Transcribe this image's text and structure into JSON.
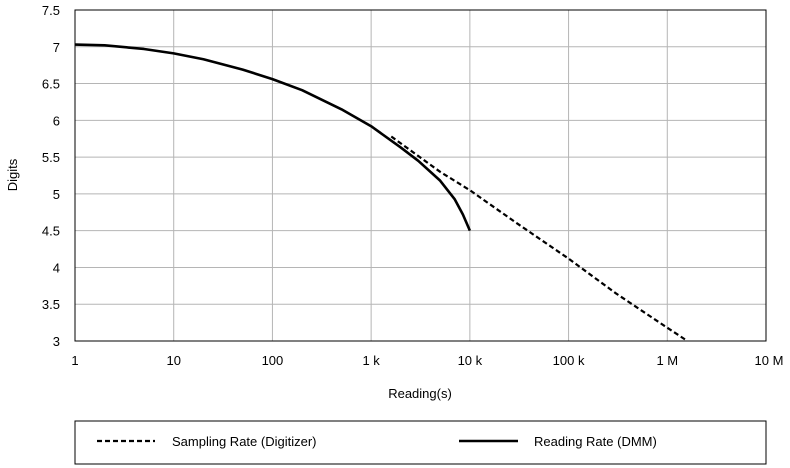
{
  "chart_data": {
    "type": "line",
    "title": "",
    "xlabel": "Reading(s)",
    "ylabel": "Digits",
    "x_scale": "log",
    "xlim": [
      1,
      10000000
    ],
    "ylim": [
      3,
      7.5
    ],
    "x_tick_values": [
      1,
      10,
      100,
      1000,
      10000,
      100000,
      1000000,
      10000000
    ],
    "x_tick_labels": [
      "1",
      "10",
      "100",
      "1 k",
      "10 k",
      "100 k",
      "1 M",
      "10 M"
    ],
    "y_tick_values": [
      3,
      3.5,
      4,
      4.5,
      5,
      5.5,
      6,
      6.5,
      7,
      7.5
    ],
    "y_tick_labels": [
      "3",
      "3.5",
      "4",
      "4.5",
      "5",
      "5.5",
      "6",
      "6.5",
      "7",
      "7.5"
    ],
    "grid": true,
    "legend_position": "bottom",
    "series": [
      {
        "name": "Sampling Rate (Digitizer)",
        "style": "dashed",
        "color": "#000000",
        "x": [
          1600,
          5000,
          10000,
          30000,
          100000,
          300000,
          1000000,
          1600000
        ],
        "y": [
          5.78,
          5.3,
          5.05,
          4.6,
          4.12,
          3.65,
          3.18,
          3.0
        ]
      },
      {
        "name": "Reading Rate (DMM)",
        "style": "solid",
        "color": "#000000",
        "x": [
          1,
          2,
          5,
          10,
          20,
          50,
          100,
          200,
          500,
          1000,
          2000,
          3000,
          5000,
          7000,
          8500,
          9500,
          10000
        ],
        "y": [
          7.03,
          7.02,
          6.97,
          6.91,
          6.83,
          6.69,
          6.56,
          6.41,
          6.15,
          5.92,
          5.63,
          5.45,
          5.18,
          4.93,
          4.72,
          4.57,
          4.5
        ]
      }
    ]
  }
}
